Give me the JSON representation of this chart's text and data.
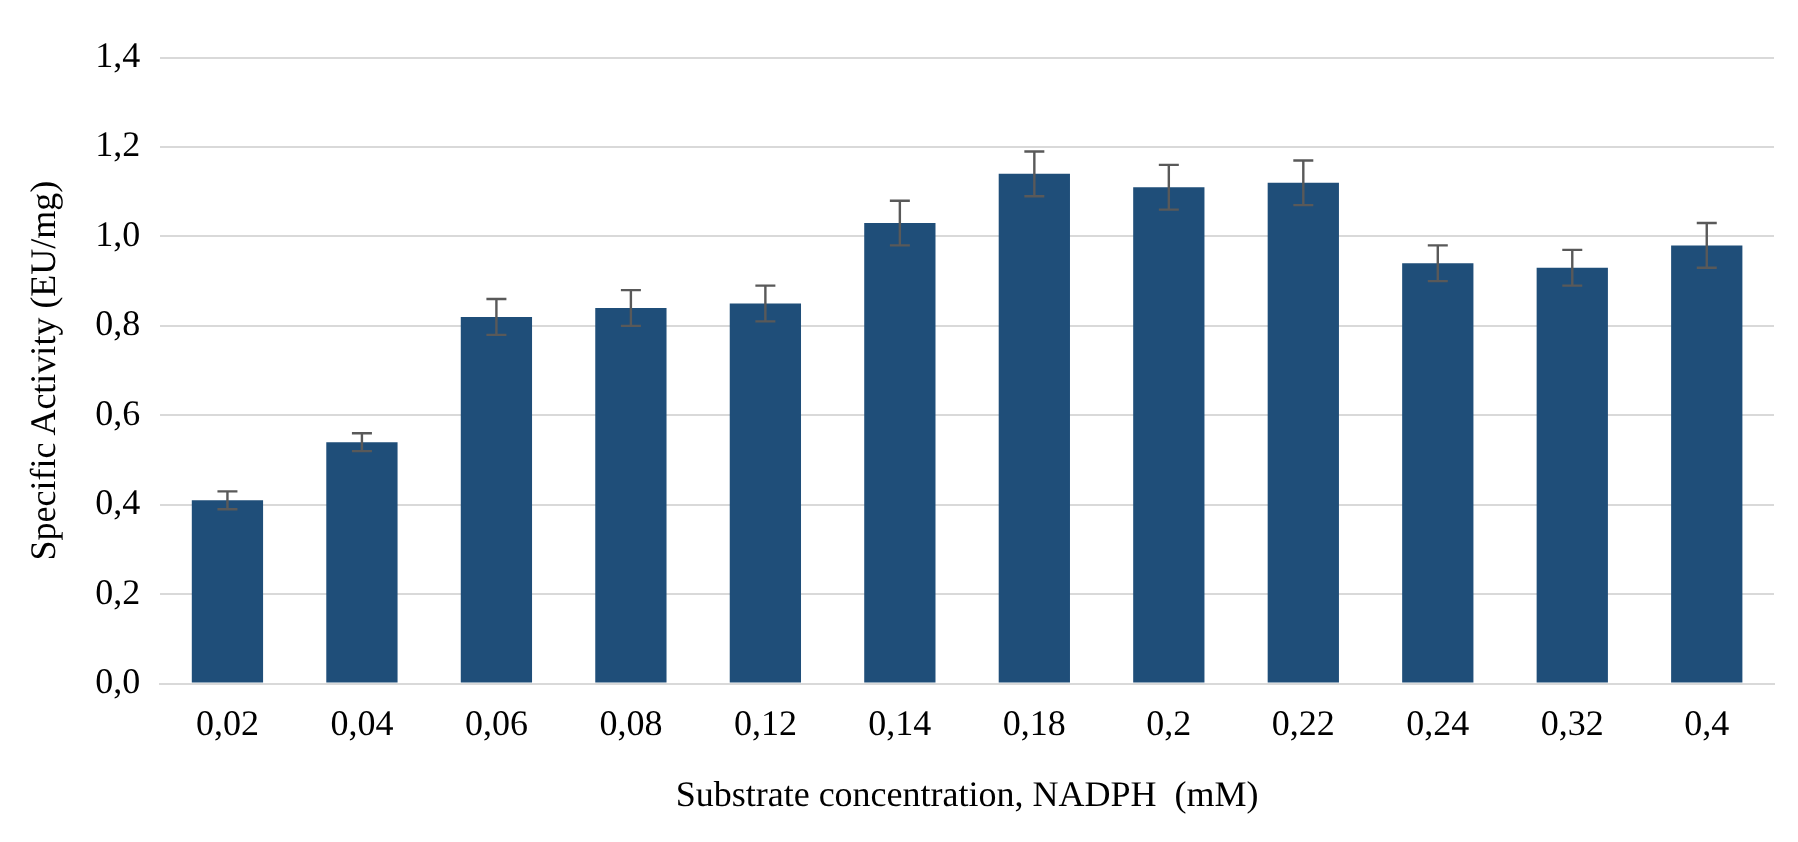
{
  "chart_data": {
    "type": "bar",
    "xlabel": "Substrate concentration, NADPH  (mM)",
    "ylabel": "Specific Activity (EU/mg)",
    "categories": [
      "0,02",
      "0,04",
      "0,06",
      "0,08",
      "0,12",
      "0,14",
      "0,18",
      "0,2",
      "0,22",
      "0,24",
      "0,32",
      "0,4"
    ],
    "values": [
      0.41,
      0.54,
      0.82,
      0.84,
      0.85,
      1.03,
      1.14,
      1.11,
      1.12,
      0.94,
      0.93,
      0.98
    ],
    "errors": [
      0.02,
      0.02,
      0.04,
      0.04,
      0.04,
      0.05,
      0.05,
      0.05,
      0.05,
      0.04,
      0.04,
      0.05
    ],
    "color": "#1f4e79",
    "ylim": [
      0,
      1.4
    ],
    "yticks": [
      {
        "value": 0,
        "label": "0,0"
      },
      {
        "value": 0.2,
        "label": "0,2"
      },
      {
        "value": 0.4,
        "label": "0,4"
      },
      {
        "value": 0.6,
        "label": "0,6"
      },
      {
        "value": 0.8,
        "label": "0,8"
      },
      {
        "value": 1.0,
        "label": "1,0"
      },
      {
        "value": 1.2,
        "label": "1,2"
      },
      {
        "value": 1.4,
        "label": "1,4"
      }
    ],
    "grid": "y",
    "legend": false
  }
}
